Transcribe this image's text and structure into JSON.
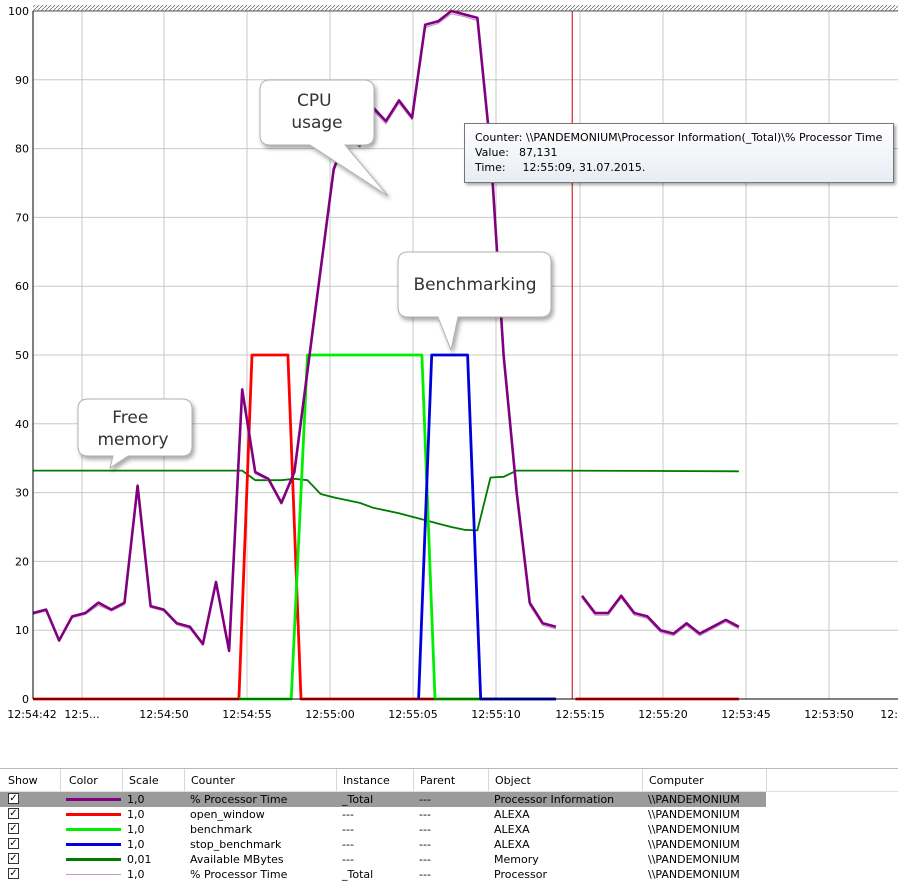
{
  "chart_data": {
    "type": "line",
    "ylim": [
      0,
      100
    ],
    "yticks": [
      "0",
      "10",
      "20",
      "30",
      "40",
      "50",
      "60",
      "70",
      "80",
      "90",
      "100"
    ],
    "x_tick_labels": [
      "12:54:42",
      "12:5...",
      "12:54:50",
      "12:54:55",
      "12:55:00",
      "12:55:05",
      "12:55:10",
      "12:55:15",
      "12:55:20",
      "12:53:45",
      "12:53:50",
      "12:"
    ],
    "time_marker_sample": 16.5,
    "series": [
      {
        "name": "% Processor Time",
        "color": "#800080",
        "width": 2.6,
        "points": [
          [
            0,
            12.5
          ],
          [
            0.4,
            13
          ],
          [
            0.8,
            8.5
          ],
          [
            1.2,
            12
          ],
          [
            1.6,
            12.5
          ],
          [
            2,
            14
          ],
          [
            2.4,
            13
          ],
          [
            2.8,
            14
          ],
          [
            3.2,
            31
          ],
          [
            3.6,
            13.5
          ],
          [
            4,
            13
          ],
          [
            4.4,
            11
          ],
          [
            4.8,
            10.5
          ],
          [
            5.2,
            8
          ],
          [
            5.6,
            17
          ],
          [
            6,
            7
          ],
          [
            6.4,
            45
          ],
          [
            6.8,
            33
          ],
          [
            7.2,
            32
          ],
          [
            7.6,
            28.5
          ],
          [
            8,
            33
          ],
          [
            8.6,
            55
          ],
          [
            9.2,
            77
          ],
          [
            9.6,
            82
          ],
          [
            10,
            80.5
          ],
          [
            10.4,
            86
          ],
          [
            10.8,
            84
          ],
          [
            11.2,
            87
          ],
          [
            11.6,
            84.5
          ],
          [
            12,
            98
          ],
          [
            12.4,
            98.5
          ],
          [
            12.8,
            100
          ],
          [
            13.2,
            99.5
          ],
          [
            13.6,
            99
          ],
          [
            14,
            80
          ],
          [
            14.4,
            50
          ],
          [
            14.8,
            30
          ],
          [
            15.2,
            14
          ],
          [
            15.6,
            11
          ],
          [
            16,
            10.5
          ],
          null,
          [
            16.8,
            15
          ],
          [
            17.2,
            12.5
          ],
          [
            17.6,
            12.5
          ],
          [
            18,
            15
          ],
          [
            18.4,
            12.5
          ],
          [
            18.8,
            12
          ],
          [
            19.2,
            10
          ],
          [
            19.6,
            9.5
          ],
          [
            20,
            11
          ],
          [
            20.4,
            9.5
          ],
          [
            20.8,
            10.5
          ],
          [
            21.2,
            11.5
          ],
          [
            21.6,
            10.5
          ]
        ]
      },
      {
        "name": "Available MBytes",
        "color": "#007a00",
        "width": 1.8,
        "points": [
          [
            0,
            33.2
          ],
          [
            6.4,
            33.2
          ],
          [
            6.8,
            31.8
          ],
          [
            7.6,
            31.8
          ],
          [
            8.0,
            32
          ],
          [
            8.4,
            31.8
          ],
          [
            8.8,
            29.8
          ],
          [
            9.2,
            29.3
          ],
          [
            10,
            28.5
          ],
          [
            10.4,
            27.8
          ],
          [
            11.2,
            27
          ],
          [
            11.6,
            26.5
          ],
          [
            12,
            26
          ],
          [
            12.4,
            25.5
          ],
          [
            12.8,
            25
          ],
          [
            13.2,
            24.6
          ],
          [
            13.6,
            24.5
          ],
          [
            14,
            32.2
          ],
          [
            14.4,
            32.3
          ],
          [
            14.8,
            33.2
          ],
          [
            15.2,
            33.2
          ],
          [
            16,
            33.2
          ],
          [
            21.6,
            33.1
          ]
        ]
      },
      {
        "name": "open_window",
        "color": "#ff0000",
        "width": 2.8,
        "points": [
          [
            0,
            0
          ],
          [
            6.3,
            0
          ],
          [
            6.7,
            50
          ],
          [
            7.8,
            50
          ],
          [
            8.2,
            0
          ],
          [
            16,
            0
          ],
          null,
          [
            16.6,
            0
          ],
          [
            21.6,
            0
          ]
        ]
      },
      {
        "name": "benchmark",
        "color": "#00ee00",
        "width": 2.8,
        "points": [
          [
            6.3,
            0
          ],
          [
            7.9,
            0
          ],
          [
            8.4,
            50
          ],
          [
            11.9,
            50
          ],
          [
            12.3,
            0
          ],
          [
            16,
            0
          ]
        ]
      },
      {
        "name": "stop_benchmark",
        "color": "#0000dd",
        "width": 2.8,
        "points": [
          [
            11.8,
            0
          ],
          [
            12.2,
            50
          ],
          [
            13.3,
            50
          ],
          [
            13.7,
            0
          ],
          [
            16,
            0
          ]
        ]
      },
      {
        "name": "% Processor Time",
        "color": "#c896c8",
        "width": 1.2,
        "points": [
          [
            0,
            12.3
          ],
          [
            0.4,
            12.8
          ],
          [
            0.8,
            8.7
          ],
          [
            1.2,
            11.8
          ],
          [
            1.6,
            12.3
          ],
          [
            2,
            13.6
          ],
          [
            2.4,
            12.8
          ],
          [
            2.8,
            13.7
          ],
          [
            3.2,
            30.5
          ],
          [
            3.6,
            13.3
          ],
          [
            4,
            12.8
          ],
          [
            4.4,
            10.8
          ],
          [
            4.8,
            10.2
          ],
          [
            5.2,
            7.8
          ],
          [
            5.6,
            16.8
          ],
          [
            6,
            6.8
          ],
          [
            6.4,
            44.5
          ],
          [
            6.8,
            32.7
          ],
          [
            7.2,
            31.8
          ],
          [
            7.6,
            28.3
          ],
          [
            8,
            32.8
          ],
          [
            8.6,
            54.6
          ],
          [
            9.2,
            76.6
          ],
          [
            9.6,
            81.6
          ],
          [
            10,
            80.2
          ],
          [
            10.4,
            85.6
          ],
          [
            10.8,
            83.6
          ],
          [
            11.2,
            86.6
          ],
          [
            11.6,
            84.2
          ],
          [
            12,
            97.6
          ],
          [
            12.4,
            98.2
          ],
          [
            12.8,
            99.6
          ],
          [
            13.2,
            99.2
          ],
          [
            13.6,
            98.6
          ],
          [
            14,
            79.6
          ],
          [
            14.4,
            49.6
          ],
          [
            14.8,
            29.6
          ],
          [
            15.2,
            13.6
          ],
          [
            15.6,
            10.7
          ],
          [
            16,
            10.2
          ],
          null,
          [
            16.8,
            14.7
          ],
          [
            17.2,
            12.2
          ],
          [
            17.6,
            12.2
          ],
          [
            18,
            14.7
          ],
          [
            18.4,
            12.2
          ],
          [
            18.8,
            11.7
          ],
          [
            19.2,
            9.7
          ],
          [
            19.6,
            9.2
          ],
          [
            20,
            10.7
          ],
          [
            20.4,
            9.2
          ],
          [
            20.8,
            10.2
          ],
          [
            21.2,
            11.2
          ],
          [
            21.6,
            10.2
          ]
        ]
      }
    ]
  },
  "callouts": {
    "cpu": "CPU\nusage",
    "bench": "Benchmarking",
    "mem": "Free\nmemory"
  },
  "tooltip": {
    "counter_label": "Counter:",
    "counter": "\\\\PANDEMONIUM\\Processor Information(_Total)\\% Processor Time",
    "value_label": "Value:",
    "value": "87,131",
    "time_label": "Time:",
    "time": "12:55:09, 31.07.2015."
  },
  "legend": {
    "headers": [
      "Show",
      "Color",
      "Scale",
      "Counter",
      "Instance",
      "Parent",
      "Object",
      "Computer"
    ],
    "rows": [
      {
        "scale": "1,0",
        "counter": "% Processor Time",
        "instance": "_Total",
        "parent": "---",
        "object": "Processor Information",
        "computer": "\\\\PANDEMONIUM",
        "color": "#800080",
        "selected": true
      },
      {
        "scale": "1,0",
        "counter": "open_window",
        "instance": "---",
        "parent": "---",
        "object": "ALEXA",
        "computer": "\\\\PANDEMONIUM",
        "color": "#ff0000",
        "selected": false
      },
      {
        "scale": "1,0",
        "counter": "benchmark",
        "instance": "---",
        "parent": "---",
        "object": "ALEXA",
        "computer": "\\\\PANDEMONIUM",
        "color": "#00ee00",
        "selected": false
      },
      {
        "scale": "1,0",
        "counter": "stop_benchmark",
        "instance": "---",
        "parent": "---",
        "object": "ALEXA",
        "computer": "\\\\PANDEMONIUM",
        "color": "#0000dd",
        "selected": false
      },
      {
        "scale": "0,01",
        "counter": "Available MBytes",
        "instance": "---",
        "parent": "---",
        "object": "Memory",
        "computer": "\\\\PANDEMONIUM",
        "color": "#007a00",
        "selected": false
      },
      {
        "scale": "1,0",
        "counter": "% Processor Time",
        "instance": "_Total",
        "parent": "---",
        "object": "Processor",
        "computer": "\\\\PANDEMONIUM",
        "color": "#c896c8",
        "selected": false
      }
    ]
  }
}
